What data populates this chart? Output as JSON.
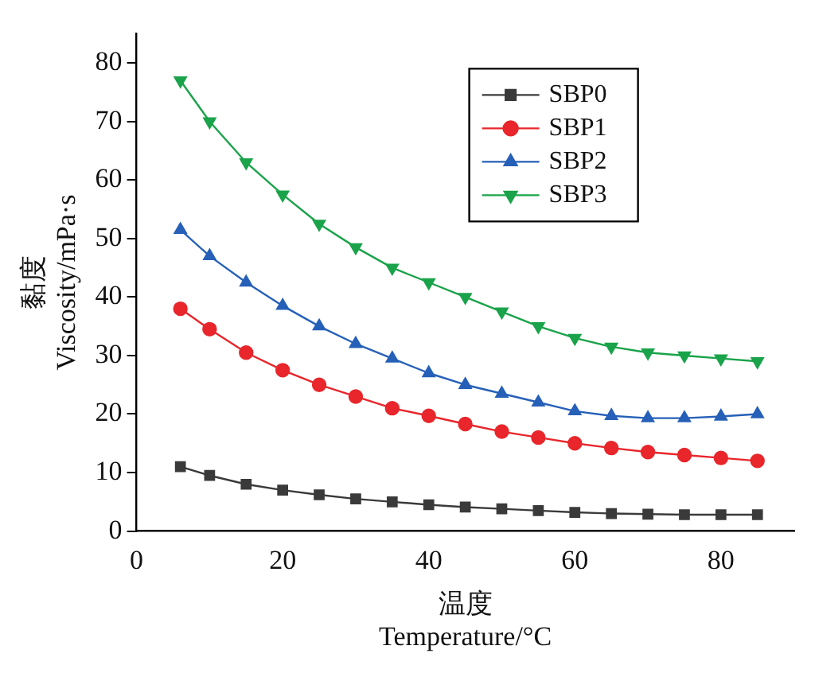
{
  "chart_data": {
    "type": "line",
    "xlabel": "温度\nTemperature/°C",
    "ylabel": "黏度\nViscosity/mPa·s",
    "x": [
      6,
      10,
      15,
      20,
      25,
      30,
      35,
      40,
      45,
      50,
      55,
      60,
      65,
      70,
      75,
      80,
      85
    ],
    "series": [
      {
        "name": "SBP0",
        "color": "#3a3a3a",
        "marker": "square",
        "values": [
          11,
          9.5,
          8,
          7,
          6.2,
          5.5,
          5,
          4.5,
          4.1,
          3.8,
          3.5,
          3.2,
          3,
          2.9,
          2.8,
          2.8,
          2.8
        ]
      },
      {
        "name": "SBP1",
        "color": "#e8262b",
        "marker": "circle",
        "values": [
          38,
          34.5,
          30.5,
          27.5,
          25,
          23,
          21,
          19.7,
          18.3,
          17,
          16,
          15,
          14.2,
          13.5,
          13,
          12.5,
          12
        ]
      },
      {
        "name": "SBP2",
        "color": "#2660b8",
        "marker": "triangle",
        "values": [
          51.5,
          47,
          42.5,
          38.5,
          35,
          32,
          29.5,
          27,
          25,
          23.5,
          22,
          20.5,
          19.7,
          19.3,
          19.3,
          19.6,
          20
        ]
      },
      {
        "name": "SBP3",
        "color": "#1aa34a",
        "marker": "triangle-down",
        "values": [
          77,
          70,
          63,
          57.5,
          52.5,
          48.5,
          45,
          42.5,
          40,
          37.5,
          35,
          33,
          31.5,
          30.5,
          30,
          29.5,
          29
        ]
      }
    ],
    "xlim": [
      0,
      90
    ],
    "xticks": [
      0,
      20,
      40,
      60,
      80
    ],
    "ylim": [
      0,
      85
    ],
    "yticks": [
      0,
      10,
      20,
      30,
      40,
      50,
      60,
      70,
      80
    ],
    "grid": false,
    "legend": "top right",
    "line_style": "solid"
  }
}
